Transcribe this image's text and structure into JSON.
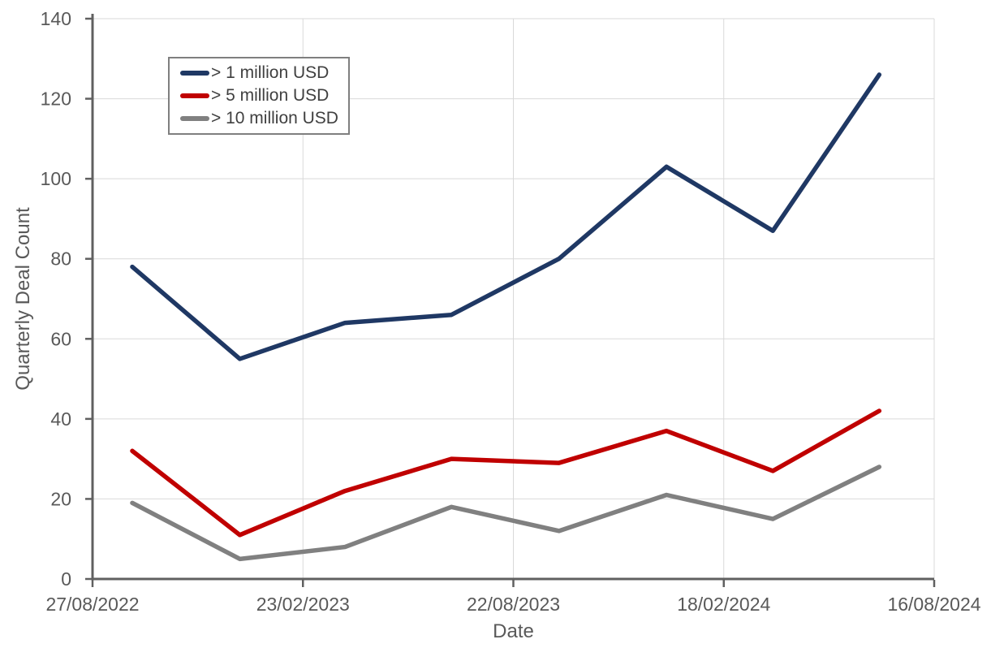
{
  "chart_data": {
    "type": "line",
    "title": "",
    "xlabel": "Date",
    "ylabel": "Quarterly Deal Count",
    "ylim": [
      0,
      140
    ],
    "ytick_step": 20,
    "yticks": [
      0,
      20,
      40,
      60,
      80,
      100,
      120,
      140
    ],
    "xticks": [
      "27/08/2022",
      "23/02/2023",
      "22/08/2023",
      "18/02/2024",
      "16/08/2024"
    ],
    "x_dates_estimated": [
      "30/09/2022",
      "31/12/2022",
      "31/03/2023",
      "30/06/2023",
      "30/09/2023",
      "31/12/2023",
      "31/03/2024",
      "30/06/2024"
    ],
    "grid": true,
    "legend_position": "top-left",
    "series": [
      {
        "name": "> 1 million USD",
        "color": "#1f3864",
        "values": [
          78,
          55,
          64,
          66,
          80,
          103,
          87,
          126
        ]
      },
      {
        "name": "> 5 million USD",
        "color": "#c00000",
        "values": [
          32,
          11,
          22,
          30,
          29,
          37,
          27,
          42
        ]
      },
      {
        "name": "> 10 million USD",
        "color": "#808080",
        "values": [
          19,
          5,
          8,
          18,
          12,
          21,
          15,
          28
        ]
      }
    ],
    "colors": {
      "axis": "#606060",
      "gridline": "#d9d9d9",
      "tick_label": "#595959",
      "axis_title": "#595959",
      "legend_text": "#404040",
      "legend_border": "#7f7f7f",
      "background": "#ffffff"
    }
  }
}
